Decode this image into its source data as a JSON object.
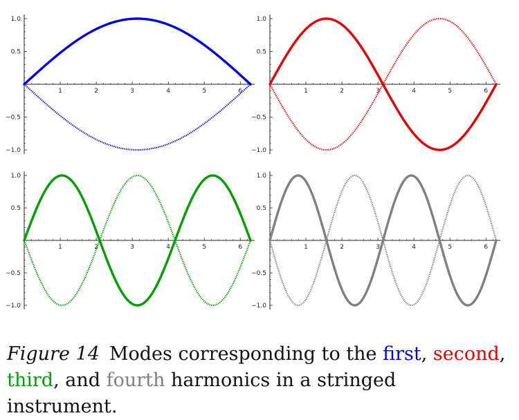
{
  "chart_data": [
    {
      "type": "line",
      "mode": 1,
      "color": "#0000e6",
      "xlim": [
        0,
        6.2832
      ],
      "ylim": [
        -1.0,
        1.0
      ],
      "x_ticks": [
        1,
        2,
        3,
        4,
        5,
        6
      ],
      "y_ticks": [
        -1.0,
        -0.5,
        0.5,
        1.0
      ],
      "x_tick_labels": [
        "1",
        "2",
        "3",
        "4",
        "5",
        "6"
      ],
      "y_tick_labels": [
        "−1.0",
        "−0.5",
        "0.5",
        "1.0"
      ],
      "series": [
        {
          "style": "solid",
          "function": "sin(x/2)",
          "samples": {
            "x": [
              0,
              1.5708,
              3.1416,
              4.7124,
              6.2832
            ],
            "y": [
              0,
              0.707,
              1.0,
              0.707,
              0
            ]
          }
        },
        {
          "style": "dotted",
          "function": "-sin(x/2)",
          "samples": {
            "x": [
              0,
              1.5708,
              3.1416,
              4.7124,
              6.2832
            ],
            "y": [
              0,
              -0.707,
              -1.0,
              -0.707,
              0
            ]
          }
        }
      ]
    },
    {
      "type": "line",
      "mode": 2,
      "color": "#e60000",
      "xlim": [
        0,
        6.2832
      ],
      "ylim": [
        -1.0,
        1.0
      ],
      "x_ticks": [
        1,
        2,
        3,
        4,
        5,
        6
      ],
      "y_ticks": [
        -1.0,
        -0.5,
        0.5,
        1.0
      ],
      "x_tick_labels": [
        "1",
        "2",
        "3",
        "4",
        "5",
        "6"
      ],
      "y_tick_labels": [
        "−1.0",
        "−0.5",
        "0.5",
        "1.0"
      ],
      "series": [
        {
          "style": "solid",
          "function": "sin(x)",
          "samples": {
            "x": [
              0,
              1.5708,
              3.1416,
              4.7124,
              6.2832
            ],
            "y": [
              0,
              1.0,
              0,
              -1.0,
              0
            ]
          }
        },
        {
          "style": "dotted",
          "function": "-sin(x)",
          "samples": {
            "x": [
              0,
              1.5708,
              3.1416,
              4.7124,
              6.2832
            ],
            "y": [
              0,
              -1.0,
              0,
              1.0,
              0
            ]
          }
        }
      ]
    },
    {
      "type": "line",
      "mode": 3,
      "color": "#00a000",
      "xlim": [
        0,
        6.2832
      ],
      "ylim": [
        -1.0,
        1.0
      ],
      "x_ticks": [
        1,
        2,
        3,
        4,
        5,
        6
      ],
      "y_ticks": [
        -1.0,
        -0.5,
        0.5,
        1.0
      ],
      "x_tick_labels": [
        "1",
        "2",
        "3",
        "4",
        "5",
        "6"
      ],
      "y_tick_labels": [
        "−1.0",
        "−0.5",
        "0.5",
        "1.0"
      ],
      "series": [
        {
          "style": "solid",
          "function": "sin(3x/2)",
          "samples": {
            "x": [
              0,
              1.0472,
              2.0944,
              3.1416,
              4.1888,
              5.236,
              6.2832
            ],
            "y": [
              0,
              1.0,
              0,
              -1.0,
              0,
              1.0,
              0
            ]
          }
        },
        {
          "style": "dotted",
          "function": "-sin(3x/2)",
          "samples": {
            "x": [
              0,
              1.0472,
              2.0944,
              3.1416,
              4.1888,
              5.236,
              6.2832
            ],
            "y": [
              0,
              -1.0,
              0,
              1.0,
              0,
              -1.0,
              0
            ]
          }
        }
      ]
    },
    {
      "type": "line",
      "mode": 4,
      "color": "#808080",
      "xlim": [
        0,
        6.2832
      ],
      "ylim": [
        -1.0,
        1.0
      ],
      "x_ticks": [
        1,
        2,
        3,
        4,
        5,
        6
      ],
      "y_ticks": [
        -1.0,
        -0.5,
        0.5,
        1.0
      ],
      "x_tick_labels": [
        "1",
        "2",
        "3",
        "4",
        "5",
        "6"
      ],
      "y_tick_labels": [
        "−1.0",
        "−0.5",
        "0.5",
        "1.0"
      ],
      "series": [
        {
          "style": "solid",
          "function": "sin(2x)",
          "samples": {
            "x": [
              0,
              0.7854,
              1.5708,
              2.3562,
              3.1416,
              3.927,
              4.7124,
              5.4978,
              6.2832
            ],
            "y": [
              0,
              1.0,
              0,
              -1.0,
              0,
              1.0,
              0,
              -1.0,
              0
            ]
          }
        },
        {
          "style": "dotted",
          "function": "-sin(2x)",
          "samples": {
            "x": [
              0,
              0.7854,
              1.5708,
              2.3562,
              3.1416,
              3.927,
              4.7124,
              5.4978,
              6.2832
            ],
            "y": [
              0,
              -1.0,
              0,
              1.0,
              0,
              -1.0,
              0,
              1.0,
              0
            ]
          }
        }
      ]
    }
  ],
  "caption": {
    "figure_label": "Figure 14",
    "text_before": "Modes corresponding to the ",
    "first": "first",
    "sep1": ", ",
    "second": "second",
    "sep2": ",",
    "third": "third",
    "sep3": ", and ",
    "fourth": "fourth",
    "text_after": " harmonics in a stringed instrument."
  },
  "colors": {
    "first": "#0000e6",
    "second": "#e60000",
    "third": "#00a000",
    "fourth": "#808080",
    "axis": "#222222"
  }
}
